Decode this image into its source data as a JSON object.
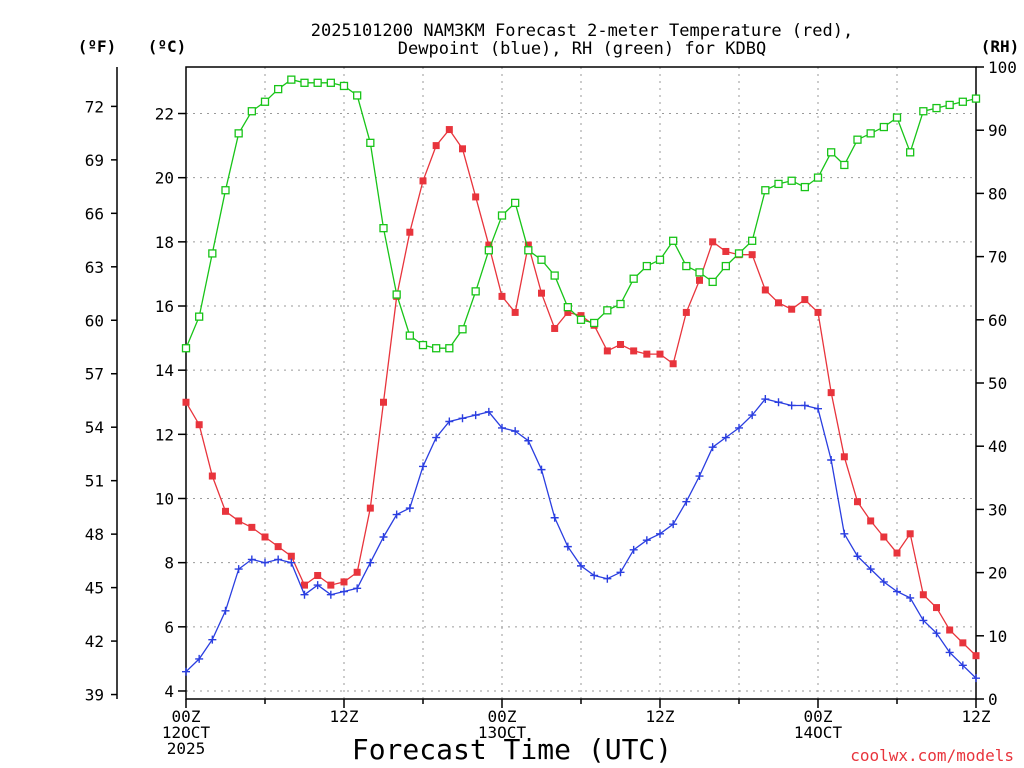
{
  "chart_data": {
    "type": "line",
    "title_line1": "2025101200 NAM3KM Forecast 2-meter Temperature (red),",
    "title_line2": "Dewpoint (blue), RH (green) for KDBQ",
    "xlabel": "Forecast Time (UTC)",
    "left_axis_f_label": "(ºF)",
    "left_axis_c_label": "(ºC)",
    "right_axis_label": "(RH)",
    "watermark": "coolwx.com/models",
    "x_range_hours": [
      0,
      60
    ],
    "y_celsius_range": [
      3.75,
      23.45
    ],
    "y_rh_range": [
      0,
      100
    ],
    "f_ticks": [
      {
        "value": 39,
        "label": "39"
      },
      {
        "value": 42,
        "label": "42"
      },
      {
        "value": 45,
        "label": "45"
      },
      {
        "value": 48,
        "label": "48"
      },
      {
        "value": 51,
        "label": "51"
      },
      {
        "value": 54,
        "label": "54"
      },
      {
        "value": 57,
        "label": "57"
      },
      {
        "value": 60,
        "label": "60"
      },
      {
        "value": 63,
        "label": "63"
      },
      {
        "value": 66,
        "label": "66"
      },
      {
        "value": 69,
        "label": "69"
      },
      {
        "value": 72,
        "label": "72"
      }
    ],
    "c_ticks": [
      {
        "value": 4,
        "label": "4"
      },
      {
        "value": 6,
        "label": "6"
      },
      {
        "value": 8,
        "label": "8"
      },
      {
        "value": 10,
        "label": "10"
      },
      {
        "value": 12,
        "label": "12"
      },
      {
        "value": 14,
        "label": "14"
      },
      {
        "value": 16,
        "label": "16"
      },
      {
        "value": 18,
        "label": "18"
      },
      {
        "value": 20,
        "label": "20"
      },
      {
        "value": 22,
        "label": "22"
      }
    ],
    "rh_ticks": [
      {
        "value": 0,
        "label": "0"
      },
      {
        "value": 10,
        "label": "10"
      },
      {
        "value": 20,
        "label": "20"
      },
      {
        "value": 30,
        "label": "30"
      },
      {
        "value": 40,
        "label": "40"
      },
      {
        "value": 50,
        "label": "50"
      },
      {
        "value": 60,
        "label": "60"
      },
      {
        "value": 70,
        "label": "70"
      },
      {
        "value": 80,
        "label": "80"
      },
      {
        "value": 90,
        "label": "90"
      },
      {
        "value": 100,
        "label": "100"
      }
    ],
    "x_ticks": [
      {
        "hour": 0,
        "lines": [
          "00Z",
          "12OCT",
          "2025"
        ]
      },
      {
        "hour": 12,
        "lines": [
          "12Z"
        ]
      },
      {
        "hour": 24,
        "lines": [
          "00Z",
          "13OCT"
        ]
      },
      {
        "hour": 36,
        "lines": [
          "12Z"
        ]
      },
      {
        "hour": 48,
        "lines": [
          "00Z",
          "14OCT"
        ]
      },
      {
        "hour": 60,
        "lines": [
          "12Z"
        ]
      }
    ],
    "hours": [
      0,
      1,
      2,
      3,
      4,
      5,
      6,
      7,
      8,
      9,
      10,
      11,
      12,
      13,
      14,
      15,
      16,
      17,
      18,
      19,
      20,
      21,
      22,
      23,
      24,
      25,
      26,
      27,
      28,
      29,
      30,
      31,
      32,
      33,
      34,
      35,
      36,
      37,
      38,
      39,
      40,
      41,
      42,
      43,
      44,
      45,
      46,
      47,
      48,
      49,
      50,
      51,
      52,
      53,
      54,
      55,
      56,
      57,
      58,
      59,
      60
    ],
    "series": [
      {
        "name": "2-meter Temperature",
        "color": "#e8343c",
        "units": "C",
        "marker": "filled-square",
        "values": [
          13.0,
          12.3,
          10.7,
          9.6,
          9.3,
          9.1,
          8.8,
          8.5,
          8.2,
          7.3,
          7.6,
          7.3,
          7.4,
          7.7,
          9.7,
          13.0,
          16.3,
          18.3,
          19.9,
          21.0,
          21.5,
          20.9,
          19.4,
          17.9,
          16.3,
          15.8,
          17.9,
          16.4,
          15.3,
          15.8,
          15.7,
          15.4,
          14.6,
          14.8,
          14.6,
          14.5,
          14.5,
          14.2,
          15.8,
          16.8,
          18.0,
          17.7,
          17.6,
          17.6,
          16.5,
          16.1,
          15.9,
          16.2,
          15.8,
          13.3,
          11.3,
          9.9,
          9.3,
          8.8,
          8.3,
          8.9,
          7.0,
          6.6,
          5.9,
          5.5,
          5.1
        ]
      },
      {
        "name": "Dewpoint",
        "color": "#2a3ee0",
        "units": "C",
        "marker": "plus",
        "values": [
          4.6,
          5.0,
          5.6,
          6.5,
          7.8,
          8.1,
          8.0,
          8.1,
          8.0,
          7.0,
          7.3,
          7.0,
          7.1,
          7.2,
          8.0,
          8.8,
          9.5,
          9.7,
          11.0,
          11.9,
          12.4,
          12.5,
          12.6,
          12.7,
          12.2,
          12.1,
          11.8,
          10.9,
          9.4,
          8.5,
          7.9,
          7.6,
          7.5,
          7.7,
          8.4,
          8.7,
          8.9,
          9.2,
          9.9,
          10.7,
          11.6,
          11.9,
          12.2,
          12.6,
          13.1,
          13.0,
          12.9,
          12.9,
          12.8,
          11.2,
          8.9,
          8.2,
          7.8,
          7.4,
          7.1,
          6.9,
          6.2,
          5.8,
          5.2,
          4.8,
          4.4
        ]
      },
      {
        "name": "RH",
        "color": "#18c418",
        "units": "%",
        "marker": "open-square",
        "values": [
          55.5,
          60.5,
          70.5,
          80.5,
          89.5,
          93.0,
          94.5,
          96.5,
          98.0,
          97.5,
          97.5,
          97.5,
          97.0,
          95.5,
          88.0,
          74.5,
          64.0,
          57.5,
          56.0,
          55.5,
          55.5,
          58.5,
          64.5,
          71.0,
          76.5,
          78.5,
          71.0,
          69.5,
          67.0,
          62.0,
          60.0,
          59.5,
          61.5,
          62.5,
          66.5,
          68.5,
          69.5,
          72.5,
          68.5,
          67.5,
          66.0,
          68.5,
          70.5,
          72.5,
          80.5,
          81.5,
          82.0,
          81.0,
          82.5,
          86.5,
          84.5,
          88.5,
          89.5,
          90.5,
          92.0,
          86.5,
          93.0,
          93.5,
          94.0,
          94.5,
          95.0
        ]
      }
    ]
  }
}
